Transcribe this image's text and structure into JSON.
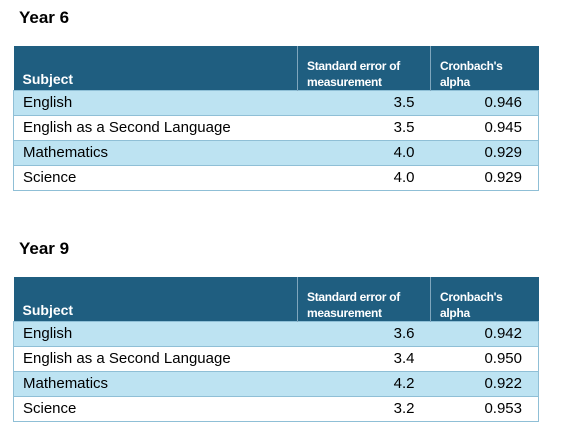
{
  "year6": {
    "title": "Year 6",
    "headers": {
      "subject": "Subject",
      "sem_line1": "Standard error of",
      "sem_line2": "measurement",
      "alpha_line1": "Cronbach's",
      "alpha_line2": "alpha"
    },
    "rows": [
      {
        "subject": "English",
        "sem": "3.5",
        "alpha": "0.946"
      },
      {
        "subject": "English as a Second Language",
        "sem": "3.5",
        "alpha": "0.945"
      },
      {
        "subject": "Mathematics",
        "sem": "4.0",
        "alpha": "0.929"
      },
      {
        "subject": "Science",
        "sem": "4.0",
        "alpha": "0.929"
      }
    ]
  },
  "year9": {
    "title": "Year 9",
    "headers": {
      "subject": "Subject",
      "sem_line1": "Standard error of",
      "sem_line2": "measurement",
      "alpha_line1": "Cronbach's",
      "alpha_line2": "alpha"
    },
    "rows": [
      {
        "subject": "English",
        "sem": "3.6",
        "alpha": "0.942"
      },
      {
        "subject": "English as a Second Language",
        "sem": "3.4",
        "alpha": "0.950"
      },
      {
        "subject": "Mathematics",
        "sem": "4.2",
        "alpha": "0.922"
      },
      {
        "subject": "Science",
        "sem": "3.2",
        "alpha": "0.953"
      }
    ]
  }
}
